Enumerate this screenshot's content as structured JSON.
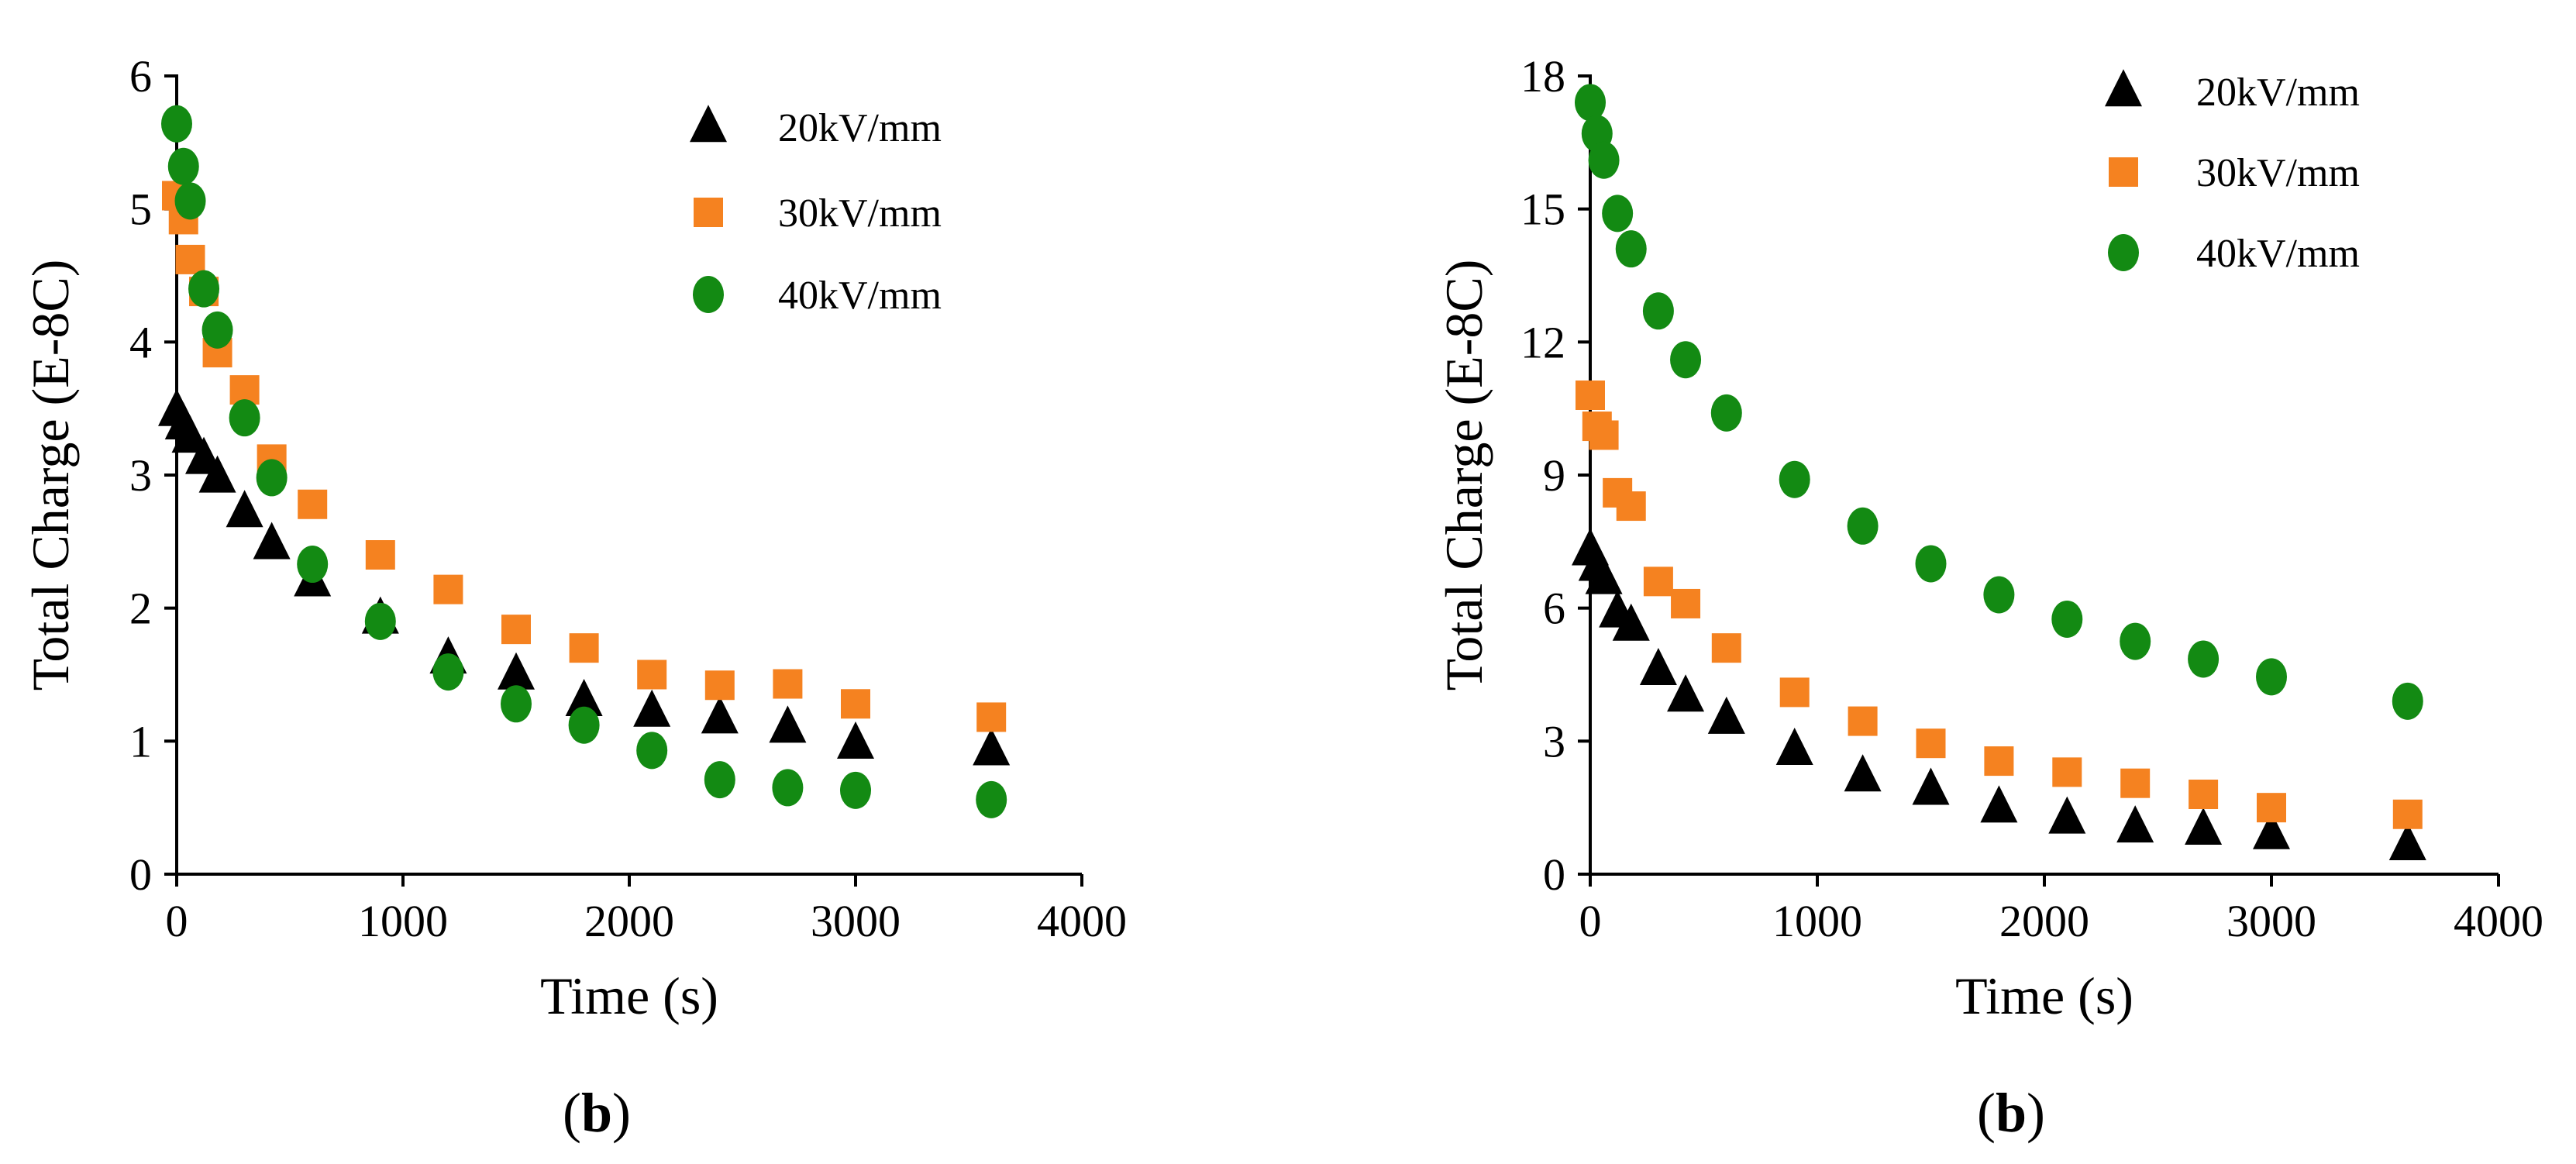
{
  "chart_data": [
    {
      "type": "scatter",
      "panel_label": "b",
      "xlabel": "Time (s)",
      "ylabel": "Total Charge (E-8C)",
      "xlim": [
        0,
        4000
      ],
      "ylim": [
        0,
        6
      ],
      "xticks": [
        0,
        1000,
        2000,
        3000,
        4000
      ],
      "yticks": [
        0,
        1,
        2,
        3,
        4,
        5,
        6
      ],
      "legend_position": "top-right",
      "series": [
        {
          "name": "20kV/mm",
          "marker": "triangle",
          "color": "#000000",
          "x": [
            0,
            30,
            60,
            120,
            180,
            300,
            420,
            600,
            900,
            1200,
            1500,
            1800,
            2100,
            2400,
            2700,
            3000,
            3600
          ],
          "values": [
            3.48,
            3.38,
            3.28,
            3.12,
            2.98,
            2.72,
            2.48,
            2.2,
            1.92,
            1.62,
            1.5,
            1.3,
            1.22,
            1.17,
            1.1,
            0.98,
            0.93
          ]
        },
        {
          "name": "30kV/mm",
          "marker": "square",
          "color": "#f58220",
          "x": [
            0,
            30,
            60,
            120,
            180,
            300,
            420,
            600,
            900,
            1200,
            1500,
            1800,
            2100,
            2400,
            2700,
            3000,
            3600
          ],
          "values": [
            5.1,
            4.92,
            4.62,
            4.38,
            3.92,
            3.64,
            3.12,
            2.78,
            2.4,
            2.14,
            1.84,
            1.7,
            1.5,
            1.42,
            1.43,
            1.28,
            1.18
          ]
        },
        {
          "name": "40kV/mm",
          "marker": "circle",
          "color": "#138a13",
          "x": [
            0,
            30,
            60,
            120,
            180,
            300,
            420,
            600,
            900,
            1200,
            1500,
            1800,
            2100,
            2400,
            2700,
            3000,
            3600
          ],
          "values": [
            5.64,
            5.32,
            5.06,
            4.4,
            4.09,
            3.43,
            2.98,
            2.33,
            1.9,
            1.52,
            1.28,
            1.12,
            0.93,
            0.71,
            0.65,
            0.63,
            0.56
          ]
        }
      ]
    },
    {
      "type": "scatter",
      "panel_label": "b",
      "xlabel": "Time (s)",
      "ylabel": "Total Charge (E-8C)",
      "xlim": [
        0,
        4000
      ],
      "ylim": [
        0,
        18
      ],
      "xticks": [
        0,
        1000,
        2000,
        3000,
        4000
      ],
      "yticks": [
        0,
        3,
        6,
        9,
        12,
        15,
        18
      ],
      "legend_position": "top-right",
      "series": [
        {
          "name": "20kV/mm",
          "marker": "triangle",
          "color": "#000000",
          "x": [
            0,
            30,
            60,
            120,
            180,
            300,
            420,
            600,
            900,
            1200,
            1500,
            1800,
            2100,
            2400,
            2700,
            3000,
            3600
          ],
          "values": [
            7.3,
            6.95,
            6.65,
            5.9,
            5.6,
            4.6,
            4.0,
            3.5,
            2.8,
            2.2,
            1.9,
            1.5,
            1.25,
            1.05,
            1.0,
            0.9,
            0.65
          ]
        },
        {
          "name": "30kV/mm",
          "marker": "square",
          "color": "#f58220",
          "x": [
            0,
            30,
            60,
            120,
            180,
            300,
            420,
            600,
            900,
            1200,
            1500,
            1800,
            2100,
            2400,
            2700,
            3000,
            3600
          ],
          "values": [
            10.8,
            10.1,
            9.9,
            8.6,
            8.3,
            6.6,
            6.1,
            5.1,
            4.1,
            3.45,
            2.95,
            2.55,
            2.3,
            2.05,
            1.8,
            1.5,
            1.35
          ]
        },
        {
          "name": "40kV/mm",
          "marker": "circle",
          "color": "#138a13",
          "x": [
            0,
            30,
            60,
            120,
            180,
            300,
            420,
            600,
            900,
            1200,
            1500,
            1800,
            2100,
            2400,
            2700,
            3000,
            3600
          ],
          "values": [
            17.4,
            16.7,
            16.1,
            14.9,
            14.1,
            12.7,
            11.6,
            10.4,
            8.9,
            7.85,
            7.0,
            6.3,
            5.75,
            5.25,
            4.85,
            4.45,
            3.9
          ]
        }
      ]
    }
  ]
}
